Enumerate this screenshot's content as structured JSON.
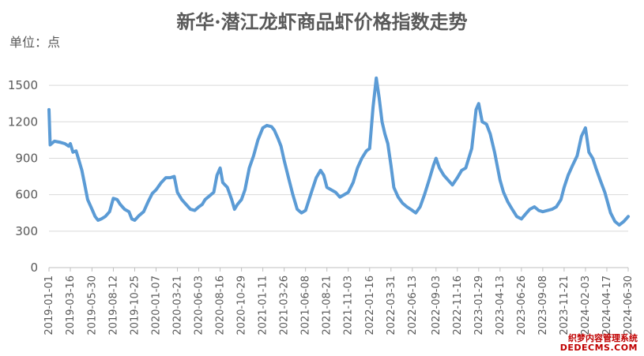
{
  "title": "新华·潜江龙虾商品虾价格指数走势",
  "unit_label": "单位：点",
  "watermark": {
    "line1": "织梦内容管理系统",
    "line2": "DEDECMS.COM"
  },
  "colors": {
    "series": "#5b9bd5",
    "text": "#595959",
    "grid": "#d9d9d9"
  },
  "chart_data": {
    "type": "line",
    "title": "新华·潜江龙虾商品虾价格指数走势",
    "ylabel": "单位：点",
    "xlabel": "",
    "ylim": [
      0,
      1650
    ],
    "yticks": [
      0,
      300,
      600,
      900,
      1200,
      1500
    ],
    "grid": true,
    "legend": "none",
    "xticks": [
      "2019-01-01",
      "2019-03-16",
      "2019-05-30",
      "2019-08-12",
      "2019-10-25",
      "2020-01-07",
      "2020-03-21",
      "2020-06-03",
      "2020-08-16",
      "2020-10-29",
      "2021-01-11",
      "2021-03-26",
      "2021-06-08",
      "2021-08-21",
      "2021-11-03",
      "2022-01-16",
      "2022-03-31",
      "2022-06-13",
      "2022-09-03",
      "2022-11-16",
      "2023-01-29",
      "2023-04-13",
      "2023-06-26",
      "2023-09-08",
      "2023-11-21",
      "2024-02-03",
      "2024-04-17",
      "2024-06-30"
    ],
    "series": [
      {
        "points": [
          [
            "2019-01-01",
            1300
          ],
          [
            "2019-01-05",
            1010
          ],
          [
            "2019-01-20",
            1040
          ],
          [
            "2019-02-10",
            1030
          ],
          [
            "2019-02-25",
            1020
          ],
          [
            "2019-03-10",
            1000
          ],
          [
            "2019-03-16",
            1020
          ],
          [
            "2019-03-25",
            950
          ],
          [
            "2019-04-05",
            960
          ],
          [
            "2019-04-15",
            880
          ],
          [
            "2019-04-25",
            800
          ],
          [
            "2019-05-05",
            680
          ],
          [
            "2019-05-15",
            560
          ],
          [
            "2019-05-30",
            480
          ],
          [
            "2019-06-10",
            420
          ],
          [
            "2019-06-20",
            390
          ],
          [
            "2019-07-01",
            400
          ],
          [
            "2019-07-15",
            420
          ],
          [
            "2019-07-30",
            460
          ],
          [
            "2019-08-12",
            570
          ],
          [
            "2019-08-25",
            560
          ],
          [
            "2019-09-05",
            520
          ],
          [
            "2019-09-20",
            480
          ],
          [
            "2019-10-05",
            460
          ],
          [
            "2019-10-15",
            400
          ],
          [
            "2019-10-25",
            390
          ],
          [
            "2019-11-10",
            430
          ],
          [
            "2019-11-25",
            460
          ],
          [
            "2019-12-10",
            540
          ],
          [
            "2019-12-25",
            610
          ],
          [
            "2020-01-07",
            640
          ],
          [
            "2020-01-25",
            700
          ],
          [
            "2020-02-10",
            740
          ],
          [
            "2020-02-25",
            740
          ],
          [
            "2020-03-10",
            750
          ],
          [
            "2020-03-21",
            620
          ],
          [
            "2020-04-05",
            560
          ],
          [
            "2020-04-20",
            520
          ],
          [
            "2020-05-05",
            480
          ],
          [
            "2020-05-20",
            470
          ],
          [
            "2020-06-03",
            500
          ],
          [
            "2020-06-15",
            520
          ],
          [
            "2020-06-25",
            560
          ],
          [
            "2020-07-10",
            590
          ],
          [
            "2020-07-25",
            620
          ],
          [
            "2020-08-05",
            760
          ],
          [
            "2020-08-16",
            820
          ],
          [
            "2020-08-25",
            700
          ],
          [
            "2020-09-10",
            660
          ],
          [
            "2020-09-25",
            560
          ],
          [
            "2020-10-05",
            480
          ],
          [
            "2020-10-15",
            520
          ],
          [
            "2020-10-29",
            560
          ],
          [
            "2020-11-10",
            640
          ],
          [
            "2020-11-25",
            820
          ],
          [
            "2020-12-10",
            920
          ],
          [
            "2020-12-25",
            1050
          ],
          [
            "2021-01-11",
            1150
          ],
          [
            "2021-01-25",
            1170
          ],
          [
            "2021-02-10",
            1160
          ],
          [
            "2021-02-20",
            1130
          ],
          [
            "2021-03-05",
            1060
          ],
          [
            "2021-03-15",
            1000
          ],
          [
            "2021-03-26",
            880
          ],
          [
            "2021-04-10",
            740
          ],
          [
            "2021-04-25",
            600
          ],
          [
            "2021-05-10",
            480
          ],
          [
            "2021-05-25",
            450
          ],
          [
            "2021-06-08",
            470
          ],
          [
            "2021-06-20",
            560
          ],
          [
            "2021-07-01",
            640
          ],
          [
            "2021-07-15",
            740
          ],
          [
            "2021-07-30",
            800
          ],
          [
            "2021-08-10",
            760
          ],
          [
            "2021-08-21",
            660
          ],
          [
            "2021-09-05",
            640
          ],
          [
            "2021-09-20",
            620
          ],
          [
            "2021-10-05",
            580
          ],
          [
            "2021-10-20",
            600
          ],
          [
            "2021-11-03",
            620
          ],
          [
            "2021-11-20",
            700
          ],
          [
            "2021-12-05",
            820
          ],
          [
            "2021-12-20",
            900
          ],
          [
            "2022-01-05",
            960
          ],
          [
            "2022-01-16",
            980
          ],
          [
            "2022-01-28",
            1320
          ],
          [
            "2022-02-08",
            1560
          ],
          [
            "2022-02-18",
            1400
          ],
          [
            "2022-02-28",
            1200
          ],
          [
            "2022-03-10",
            1100
          ],
          [
            "2022-03-20",
            1020
          ],
          [
            "2022-03-31",
            840
          ],
          [
            "2022-04-10",
            660
          ],
          [
            "2022-04-25",
            580
          ],
          [
            "2022-05-10",
            530
          ],
          [
            "2022-05-25",
            500
          ],
          [
            "2022-06-13",
            470
          ],
          [
            "2022-06-25",
            450
          ],
          [
            "2022-07-10",
            500
          ],
          [
            "2022-07-25",
            600
          ],
          [
            "2022-08-10",
            720
          ],
          [
            "2022-08-25",
            840
          ],
          [
            "2022-09-03",
            900
          ],
          [
            "2022-09-15",
            820
          ],
          [
            "2022-09-30",
            760
          ],
          [
            "2022-10-15",
            720
          ],
          [
            "2022-10-30",
            680
          ],
          [
            "2022-11-16",
            740
          ],
          [
            "2022-12-01",
            800
          ],
          [
            "2022-12-15",
            820
          ],
          [
            "2023-01-05",
            980
          ],
          [
            "2023-01-20",
            1300
          ],
          [
            "2023-01-29",
            1350
          ],
          [
            "2023-02-10",
            1200
          ],
          [
            "2023-02-25",
            1180
          ],
          [
            "2023-03-10",
            1100
          ],
          [
            "2023-03-25",
            950
          ],
          [
            "2023-04-13",
            720
          ],
          [
            "2023-04-25",
            620
          ],
          [
            "2023-05-10",
            540
          ],
          [
            "2023-05-25",
            480
          ],
          [
            "2023-06-10",
            420
          ],
          [
            "2023-06-26",
            400
          ],
          [
            "2023-07-10",
            440
          ],
          [
            "2023-07-25",
            480
          ],
          [
            "2023-08-10",
            500
          ],
          [
            "2023-08-25",
            470
          ],
          [
            "2023-09-08",
            460
          ],
          [
            "2023-09-25",
            470
          ],
          [
            "2023-10-10",
            480
          ],
          [
            "2023-10-25",
            500
          ],
          [
            "2023-11-10",
            560
          ],
          [
            "2023-11-21",
            660
          ],
          [
            "2023-12-05",
            760
          ],
          [
            "2023-12-20",
            840
          ],
          [
            "2024-01-05",
            920
          ],
          [
            "2024-01-20",
            1080
          ],
          [
            "2024-02-03",
            1150
          ],
          [
            "2024-02-15",
            950
          ],
          [
            "2024-02-28",
            900
          ],
          [
            "2024-03-10",
            820
          ],
          [
            "2024-03-25",
            720
          ],
          [
            "2024-04-10",
            620
          ],
          [
            "2024-04-17",
            560
          ],
          [
            "2024-04-30",
            450
          ],
          [
            "2024-05-15",
            380
          ],
          [
            "2024-05-30",
            350
          ],
          [
            "2024-06-15",
            380
          ],
          [
            "2024-06-30",
            420
          ]
        ]
      }
    ]
  }
}
